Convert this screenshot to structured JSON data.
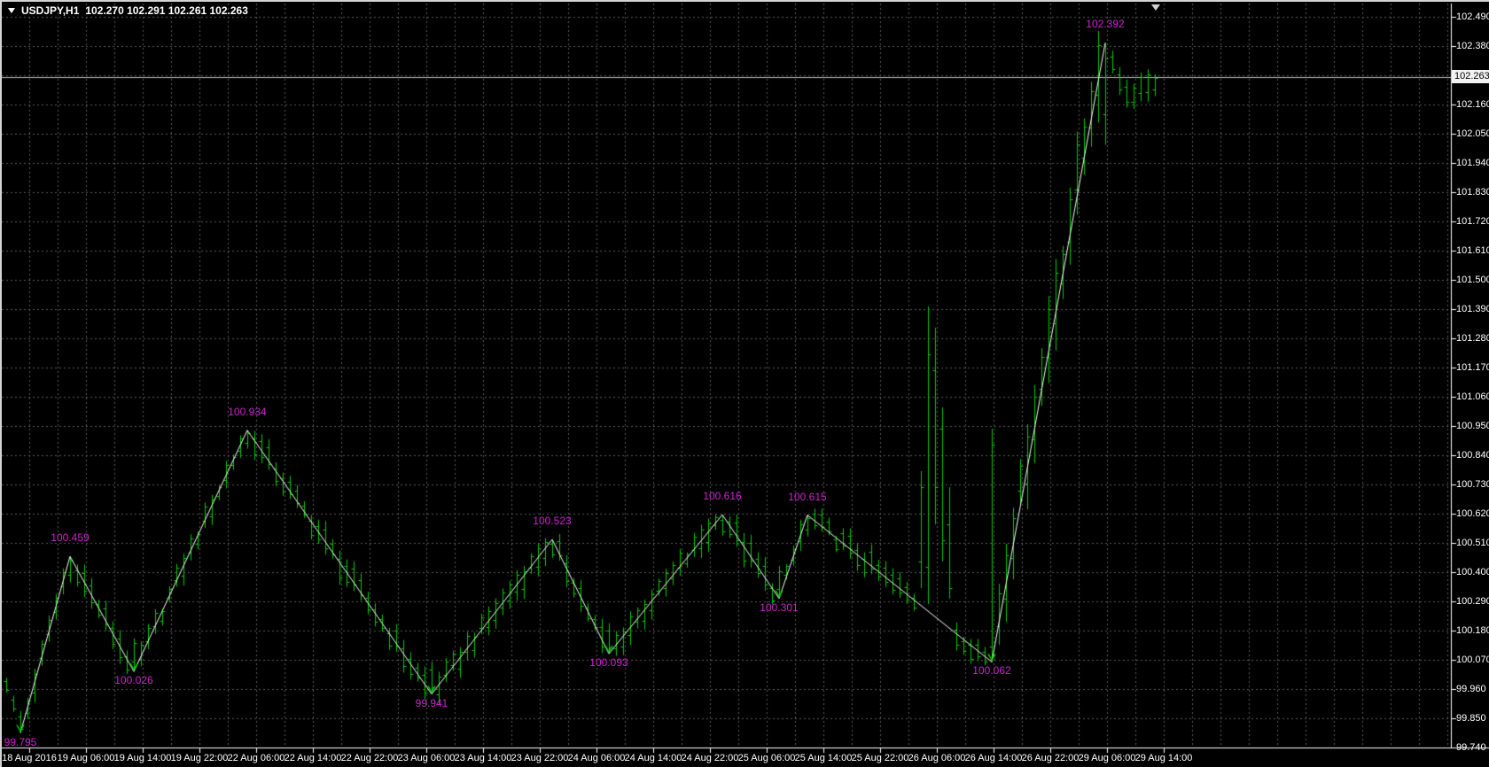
{
  "window": {
    "title_symbol": "USDJPY,H1",
    "quote_ohlc": "102.270 102.291 102.261 102.263"
  },
  "colors": {
    "background": "#000000",
    "grid": "#5a5a5a",
    "bar": "#00cc00",
    "zigzag_line": "#ffffff",
    "swing_label": "#cc22cc",
    "axis_text": "#ffffff",
    "axis_line": "#ffffff",
    "current_price_line": "#b9b9b9",
    "current_price_tag_bg": "#f2f2f2",
    "current_price_tag_text": "#000000"
  },
  "icons": {
    "title_marker": "down-triangle-icon",
    "chart_shift": "down-triangle-icon",
    "swing_low_marker": "green-chevron-down"
  },
  "chart_data": {
    "type": "bar",
    "symbol": "USDJPY",
    "timeframe": "H1",
    "title": "USDJPY,H1 102.270 102.291 102.261 102.263",
    "ohlc_readout": {
      "open": "102.270",
      "high": "102.291",
      "low": "102.261",
      "close": "102.263"
    },
    "current_price": "102.263",
    "grid": "dashed",
    "legend_position": "none",
    "y_axis": {
      "min": 99.74,
      "max": 102.49,
      "step": 0.11,
      "ticks": [
        "102.490",
        "102.380",
        "102.270",
        "102.160",
        "102.050",
        "101.940",
        "101.830",
        "101.720",
        "101.610",
        "101.500",
        "101.390",
        "101.280",
        "101.170",
        "101.060",
        "100.950",
        "100.840",
        "100.730",
        "100.620",
        "100.510",
        "100.400",
        "100.290",
        "100.180",
        "100.070",
        "99.960",
        "99.850",
        "99.740"
      ]
    },
    "x_axis": {
      "ticks": [
        "18 Aug 2016",
        "19 Aug 06:00",
        "19 Aug 14:00",
        "19 Aug 22:00",
        "22 Aug 06:00",
        "22 Aug 14:00",
        "22 Aug 22:00",
        "23 Aug 06:00",
        "23 Aug 14:00",
        "23 Aug 22:00",
        "24 Aug 06:00",
        "24 Aug 14:00",
        "24 Aug 22:00",
        "25 Aug 06:00",
        "25 Aug 14:00",
        "25 Aug 22:00",
        "26 Aug 06:00",
        "26 Aug 14:00",
        "26 Aug 22:00",
        "29 Aug 06:00",
        "29 Aug 14:00"
      ]
    },
    "zigzag_series": [
      {
        "bar": 2,
        "price": 99.795,
        "label": "99.795",
        "type": "low"
      },
      {
        "bar": 9,
        "price": 100.459,
        "label": "100.459",
        "type": "high"
      },
      {
        "bar": 18,
        "price": 100.026,
        "label": "100.026",
        "type": "low"
      },
      {
        "bar": 34,
        "price": 100.934,
        "label": "100.934",
        "type": "high"
      },
      {
        "bar": 60,
        "price": 99.941,
        "label": "99.941",
        "type": "low"
      },
      {
        "bar": 77,
        "price": 100.523,
        "label": "100.523",
        "type": "high"
      },
      {
        "bar": 85,
        "price": 100.093,
        "label": "100.093",
        "type": "low"
      },
      {
        "bar": 101,
        "price": 100.616,
        "label": "100.616",
        "type": "high"
      },
      {
        "bar": 109,
        "price": 100.301,
        "label": "100.301",
        "type": "low"
      },
      {
        "bar": 113,
        "price": 100.615,
        "label": "100.615",
        "type": "high"
      },
      {
        "bar": 139,
        "price": 100.062,
        "label": "100.062",
        "type": "low"
      },
      {
        "bar": 155,
        "price": 102.392,
        "label": "102.392",
        "type": "high"
      }
    ],
    "price_path_extra": [
      {
        "bar": 0,
        "price": 99.99
      },
      {
        "bar": 158,
        "price": 102.2
      },
      {
        "bar": 162,
        "price": 102.25
      }
    ],
    "bar_count": 163,
    "rally_range": [
      140,
      155
    ],
    "bar_overrides": {
      "129": [
        100.78,
        100.34,
        100.44,
        100.72
      ],
      "130": [
        101.4,
        100.28,
        100.42,
        101.22
      ],
      "131": [
        101.32,
        100.58,
        101.16,
        100.72
      ],
      "132": [
        101.02,
        100.44,
        100.94,
        100.52
      ],
      "133": [
        100.72,
        100.3,
        100.58,
        100.34
      ],
      "139": [
        100.94,
        100.062,
        100.12,
        100.88
      ]
    }
  }
}
